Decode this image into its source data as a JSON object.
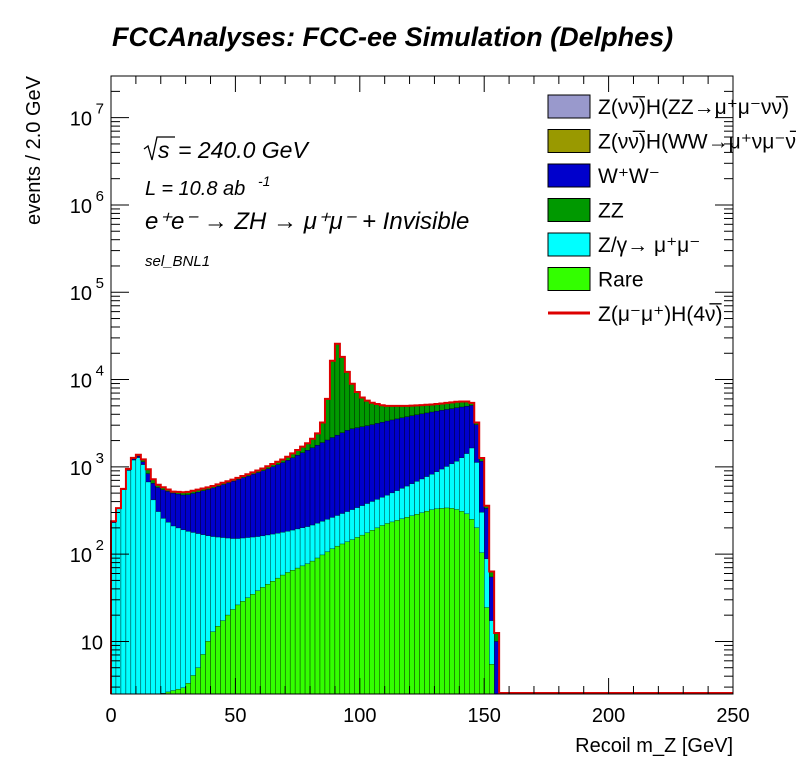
{
  "chart_data": {
    "type": "area",
    "title": "FCCAnalyses: FCC-ee Simulation (Delphes)",
    "xlabel": "Recoil m_Z [GeV]",
    "ylabel": "events / 2.0 GeV",
    "xlim": [
      0,
      250
    ],
    "ylim": [
      2.5,
      30000000
    ],
    "yscale": "log",
    "bin_width": 2,
    "x_ticks": [
      0,
      50,
      100,
      150,
      200,
      250
    ],
    "y_ticks": [
      {
        "value": 10,
        "label": "10"
      },
      {
        "value": 100,
        "label": "10^2"
      },
      {
        "value": 1000,
        "label": "10^3"
      },
      {
        "value": 10000,
        "label": "10^4"
      },
      {
        "value": 100000,
        "label": "10^5"
      },
      {
        "value": 1000000,
        "label": "10^6"
      },
      {
        "value": 10000000,
        "label": "10^7"
      }
    ],
    "annotations": {
      "sqrt_s": "= 240.0 GeV",
      "sqrt_label": "s",
      "lumi": "L = 10.8 ab",
      "lumi_exp": "-1",
      "process": "e⁺e⁻ → ZH → μ⁺μ⁻ + Invisible",
      "selection": "sel_BNL1"
    },
    "legend": [
      {
        "label": "Z(νν̅)H(ZZ→μ⁺μ⁻νν̅)",
        "color": "#9999cc",
        "style": "box"
      },
      {
        "label": "Z(νν̅)H(WW→μ⁺νμ⁻ν̅)",
        "color": "#999900",
        "style": "box"
      },
      {
        "label": "W⁺W⁻",
        "color": "#0000cc",
        "style": "box"
      },
      {
        "label": "ZZ",
        "color": "#009900",
        "style": "box"
      },
      {
        "label": "Z/γ→ μ⁺μ⁻",
        "color": "#00ffff",
        "style": "box"
      },
      {
        "label": "Rare",
        "color": "#33ff00",
        "style": "box"
      },
      {
        "label": "Z(μ⁻μ⁺)H(4ν̅)",
        "color": "#dd0000",
        "style": "line"
      }
    ],
    "legend_position": "top-right",
    "series": [
      {
        "name": "Rare",
        "color": "#33ff00",
        "knots": [
          [
            10,
            1.5
          ],
          [
            20,
            2.5
          ],
          [
            30,
            3
          ],
          [
            35,
            5
          ],
          [
            40,
            12
          ],
          [
            50,
            25
          ],
          [
            60,
            40
          ],
          [
            70,
            60
          ],
          [
            80,
            80
          ],
          [
            90,
            120
          ],
          [
            100,
            160
          ],
          [
            110,
            220
          ],
          [
            120,
            270
          ],
          [
            130,
            330
          ],
          [
            136,
            340
          ],
          [
            140,
            320
          ],
          [
            144,
            280
          ],
          [
            148,
            180
          ],
          [
            150,
            60
          ],
          [
            152,
            10
          ],
          [
            154,
            3
          ],
          [
            156,
            0
          ]
        ]
      },
      {
        "name": "Z/γ→ μ⁺μ⁻",
        "color": "#00ffff",
        "knots": [
          [
            0,
            190
          ],
          [
            4,
            400
          ],
          [
            6,
            750
          ],
          [
            8,
            1100
          ],
          [
            10,
            1300
          ],
          [
            12,
            1250
          ],
          [
            14,
            900
          ],
          [
            16,
            500
          ],
          [
            18,
            350
          ],
          [
            20,
            270
          ],
          [
            25,
            210
          ],
          [
            30,
            185
          ],
          [
            40,
            160
          ],
          [
            50,
            150
          ],
          [
            60,
            160
          ],
          [
            70,
            180
          ],
          [
            80,
            210
          ],
          [
            90,
            270
          ],
          [
            100,
            350
          ],
          [
            110,
            460
          ],
          [
            120,
            620
          ],
          [
            130,
            850
          ],
          [
            140,
            1200
          ],
          [
            144,
            1500
          ],
          [
            146,
            1800
          ],
          [
            148,
            700
          ],
          [
            150,
            130
          ],
          [
            152,
            60
          ],
          [
            154,
            5
          ],
          [
            156,
            0
          ]
        ]
      },
      {
        "name": "W⁺W⁻",
        "color": "#0000cc",
        "knots": [
          [
            0,
            200
          ],
          [
            4,
            400
          ],
          [
            6,
            760
          ],
          [
            8,
            1120
          ],
          [
            10,
            1350
          ],
          [
            12,
            1300
          ],
          [
            14,
            1000
          ],
          [
            16,
            700
          ],
          [
            18,
            600
          ],
          [
            20,
            560
          ],
          [
            25,
            500
          ],
          [
            30,
            470
          ],
          [
            40,
            560
          ],
          [
            50,
            700
          ],
          [
            60,
            880
          ],
          [
            70,
            1150
          ],
          [
            80,
            1600
          ],
          [
            88,
            2100
          ],
          [
            96,
            2700
          ],
          [
            104,
            3000
          ],
          [
            110,
            3300
          ],
          [
            120,
            3800
          ],
          [
            130,
            4300
          ],
          [
            140,
            4800
          ],
          [
            144,
            5000
          ],
          [
            146,
            5100
          ],
          [
            148,
            1800
          ],
          [
            150,
            750
          ],
          [
            152,
            150
          ],
          [
            154,
            20
          ],
          [
            156,
            0
          ]
        ]
      },
      {
        "name": "ZZ",
        "color": "#009900",
        "knots": [
          [
            0,
            200
          ],
          [
            4,
            400
          ],
          [
            6,
            780
          ],
          [
            8,
            1150
          ],
          [
            10,
            1400
          ],
          [
            12,
            1350
          ],
          [
            14,
            1100
          ],
          [
            16,
            800
          ],
          [
            18,
            650
          ],
          [
            20,
            600
          ],
          [
            25,
            520
          ],
          [
            30,
            510
          ],
          [
            40,
            590
          ],
          [
            50,
            730
          ],
          [
            60,
            930
          ],
          [
            70,
            1250
          ],
          [
            80,
            1950
          ],
          [
            84,
            2600
          ],
          [
            86,
            4000
          ],
          [
            88,
            9000
          ],
          [
            90,
            30000
          ],
          [
            92,
            22000
          ],
          [
            94,
            15000
          ],
          [
            96,
            10000
          ],
          [
            98,
            8000
          ],
          [
            100,
            6500
          ],
          [
            104,
            5500
          ],
          [
            110,
            5000
          ],
          [
            120,
            5000
          ],
          [
            130,
            5200
          ],
          [
            140,
            5600
          ],
          [
            144,
            5600
          ],
          [
            146,
            5200
          ],
          [
            148,
            2000
          ],
          [
            150,
            800
          ],
          [
            152,
            160
          ],
          [
            154,
            25
          ],
          [
            156,
            0
          ]
        ]
      },
      {
        "name": "Z(νν̅)H(WW→μ⁺νμ⁻ν̅)",
        "color": "#999900",
        "knots": [
          [
            0,
            200
          ],
          [
            4,
            400
          ],
          [
            6,
            780
          ],
          [
            8,
            1150
          ],
          [
            10,
            1400
          ],
          [
            12,
            1350
          ],
          [
            14,
            1100
          ],
          [
            16,
            800
          ],
          [
            18,
            650
          ],
          [
            20,
            600
          ],
          [
            25,
            520
          ],
          [
            30,
            510
          ],
          [
            40,
            590
          ],
          [
            50,
            730
          ],
          [
            60,
            930
          ],
          [
            70,
            1250
          ],
          [
            80,
            1950
          ],
          [
            84,
            2600
          ],
          [
            86,
            4000
          ],
          [
            88,
            9000
          ],
          [
            90,
            30000
          ],
          [
            92,
            22000
          ],
          [
            94,
            15000
          ],
          [
            96,
            10000
          ],
          [
            98,
            8000
          ],
          [
            100,
            6500
          ],
          [
            104,
            5500
          ],
          [
            110,
            5000
          ],
          [
            120,
            5000
          ],
          [
            130,
            5200
          ],
          [
            140,
            5600
          ],
          [
            144,
            5600
          ],
          [
            146,
            5200
          ],
          [
            148,
            2000
          ],
          [
            150,
            800
          ],
          [
            152,
            160
          ],
          [
            154,
            25
          ],
          [
            156,
            0
          ]
        ]
      },
      {
        "name": "Z(νν̅)H(ZZ→μ⁺μ⁻νν̅)",
        "color": "#9999cc",
        "knots": [
          [
            0,
            200
          ],
          [
            4,
            400
          ],
          [
            6,
            780
          ],
          [
            8,
            1150
          ],
          [
            10,
            1400
          ],
          [
            12,
            1350
          ],
          [
            14,
            1100
          ],
          [
            16,
            800
          ],
          [
            18,
            650
          ],
          [
            20,
            600
          ],
          [
            25,
            520
          ],
          [
            30,
            510
          ],
          [
            40,
            590
          ],
          [
            50,
            730
          ],
          [
            60,
            930
          ],
          [
            70,
            1250
          ],
          [
            80,
            1950
          ],
          [
            84,
            2600
          ],
          [
            86,
            4000
          ],
          [
            88,
            9000
          ],
          [
            90,
            30000
          ],
          [
            92,
            22000
          ],
          [
            94,
            15000
          ],
          [
            96,
            10000
          ],
          [
            98,
            8000
          ],
          [
            100,
            6500
          ],
          [
            104,
            5500
          ],
          [
            110,
            5000
          ],
          [
            120,
            5000
          ],
          [
            130,
            5200
          ],
          [
            140,
            5600
          ],
          [
            144,
            5600
          ],
          [
            146,
            5200
          ],
          [
            148,
            2000
          ],
          [
            150,
            800
          ],
          [
            152,
            160
          ],
          [
            154,
            25
          ],
          [
            156,
            0
          ]
        ]
      }
    ]
  }
}
